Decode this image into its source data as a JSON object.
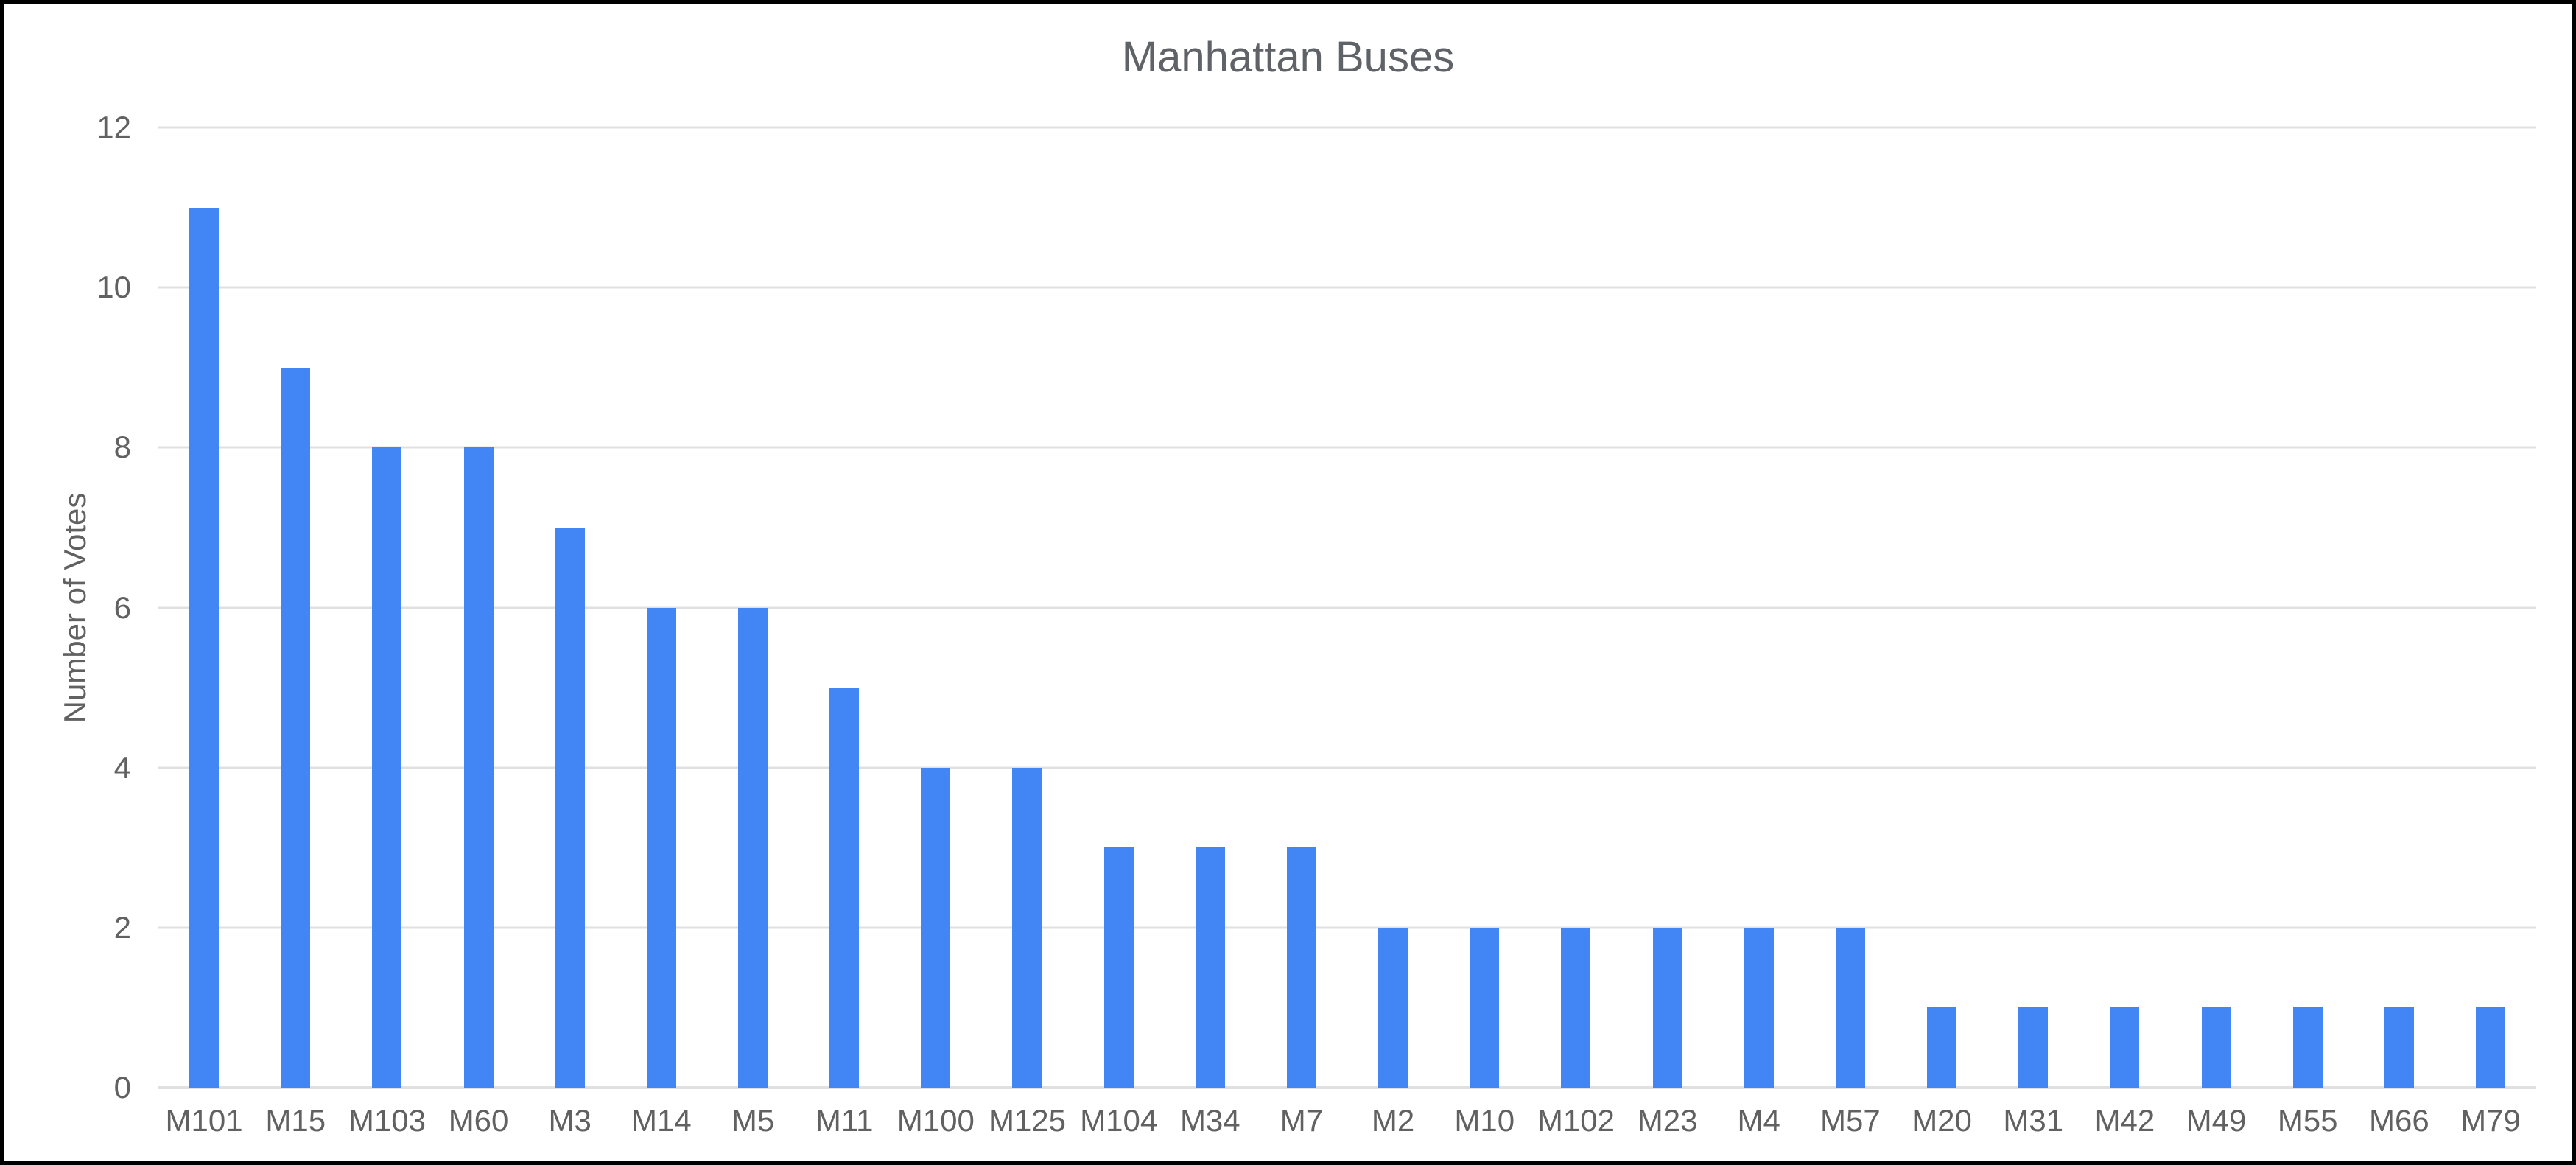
{
  "page": {
    "background": "#ffffff",
    "frame_border_color": "#000000"
  },
  "chart_data": {
    "type": "bar",
    "title": "Manhattan Buses",
    "xlabel": "",
    "ylabel": "Number of Votes",
    "categories": [
      "M101",
      "M15",
      "M103",
      "M60",
      "M3",
      "M14",
      "M5",
      "M11",
      "M100",
      "M125",
      "M104",
      "M34",
      "M7",
      "M2",
      "M10",
      "M102",
      "M23",
      "M4",
      "M57",
      "M20",
      "M31",
      "M42",
      "M49",
      "M55",
      "M66",
      "M79"
    ],
    "values": [
      11,
      9,
      8,
      8,
      7,
      6,
      6,
      5,
      4,
      4,
      3,
      3,
      3,
      2,
      2,
      2,
      2,
      2,
      2,
      1,
      1,
      1,
      1,
      1,
      1,
      1
    ],
    "ylim": [
      0,
      12
    ],
    "yticks": [
      0,
      2,
      4,
      6,
      8,
      10,
      12
    ],
    "grid": true,
    "legend": "none",
    "bar_color": "#4285f4",
    "gridline_color": "#e0e0e0",
    "axis_label_color": "#616161",
    "title_color": "#5f6368"
  }
}
